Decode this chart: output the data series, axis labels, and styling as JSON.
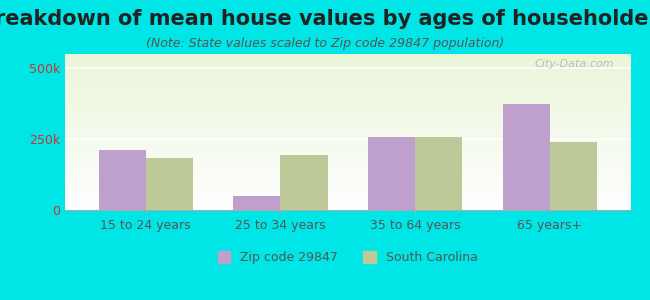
{
  "title": "Breakdown of mean house values by ages of householders",
  "subtitle": "(Note: State values scaled to Zip code 29847 population)",
  "categories": [
    "15 to 24 years",
    "25 to 34 years",
    "35 to 64 years",
    "65 years+"
  ],
  "zip_values": [
    210000,
    50000,
    258000,
    375000
  ],
  "state_values": [
    185000,
    195000,
    258000,
    238000
  ],
  "zip_color": "#bf9fcc",
  "state_color": "#bec99a",
  "background_color": "#00e5e5",
  "yticks": [
    0,
    250000,
    500000
  ],
  "ytick_labels": [
    "0",
    "250k",
    "500k"
  ],
  "watermark": "City-Data.com",
  "title_fontsize": 15,
  "subtitle_fontsize": 9,
  "tick_fontsize": 9,
  "legend_fontsize": 9
}
